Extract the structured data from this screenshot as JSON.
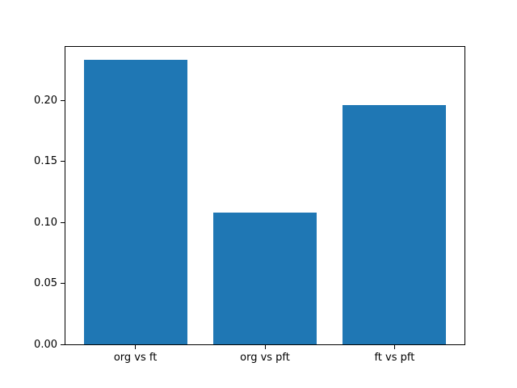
{
  "chart_data": {
    "type": "bar",
    "categories": [
      "org vs ft",
      "org vs pft",
      "ft vs pft"
    ],
    "values": [
      0.233,
      0.108,
      0.196
    ],
    "ytick_values": [
      0.0,
      0.05,
      0.1,
      0.15,
      0.2
    ],
    "ytick_labels": [
      "0.00",
      "0.05",
      "0.10",
      "0.15",
      "0.20"
    ],
    "ylim": [
      0,
      0.2437
    ],
    "bar_color": "#1f77b4",
    "spine_color": "#000000",
    "background_color": "#ffffff",
    "bar_width_fraction": 0.8,
    "x_margin": 0.05,
    "grid": false,
    "legend": false,
    "title": "",
    "xlabel": "",
    "ylabel": ""
  }
}
